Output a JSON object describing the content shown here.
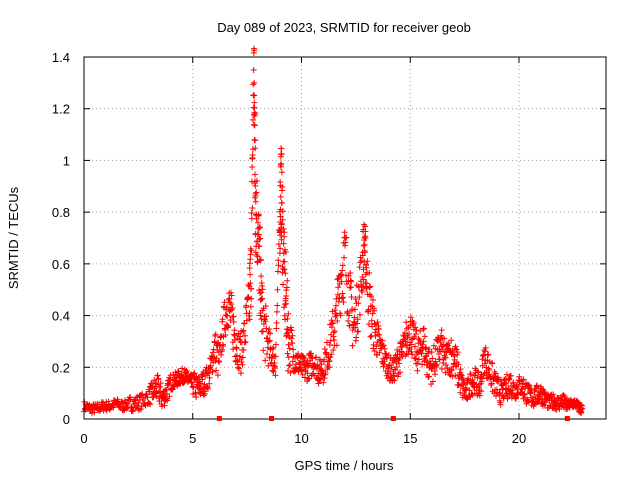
{
  "chart_data": {
    "type": "scatter",
    "title": "Day 089 of 2023, SRMTID for receiver geob",
    "xlabel": "GPS time / hours",
    "ylabel": "SRMTID / TECUs",
    "xlim": [
      0,
      24
    ],
    "ylim": [
      0,
      1.4
    ],
    "x_ticks": [
      0,
      5,
      10,
      15,
      20
    ],
    "x_tick_labels": [
      "0",
      "5",
      "10",
      "15",
      "20"
    ],
    "y_ticks": [
      0,
      0.2,
      0.4,
      0.6,
      0.8,
      1.0,
      1.2,
      1.4
    ],
    "y_tick_labels": [
      "0",
      "0.2",
      "0.4",
      "0.6",
      "0.8",
      "1",
      "1.2",
      "1.4"
    ],
    "grid": true,
    "marker": "+",
    "series_color": "#ff0000",
    "series": [
      {
        "name": "SRMTID",
        "x": [
          0.0,
          0.3,
          0.6,
          0.9,
          1.2,
          1.5,
          1.8,
          2.1,
          2.4,
          2.7,
          3.0,
          3.2,
          3.4,
          3.6,
          3.8,
          4.0,
          4.2,
          4.4,
          4.6,
          4.8,
          5.0,
          5.2,
          5.4,
          5.6,
          5.8,
          6.0,
          6.2,
          6.4,
          6.6,
          6.8,
          7.0,
          7.2,
          7.4,
          7.6,
          7.7,
          7.8,
          7.85,
          7.9,
          8.0,
          8.1,
          8.2,
          8.4,
          8.6,
          8.8,
          9.0,
          9.05,
          9.1,
          9.2,
          9.3,
          9.4,
          9.6,
          9.8,
          10.0,
          10.2,
          10.4,
          10.6,
          10.8,
          11.0,
          11.2,
          11.4,
          11.6,
          11.8,
          12.0,
          12.2,
          12.4,
          12.6,
          12.8,
          12.9,
          13.0,
          13.2,
          13.4,
          13.6,
          13.8,
          14.0,
          14.2,
          14.4,
          14.6,
          14.8,
          15.0,
          15.2,
          15.4,
          15.6,
          15.8,
          16.0,
          16.2,
          16.4,
          16.6,
          16.8,
          17.0,
          17.2,
          17.4,
          17.6,
          17.8,
          18.0,
          18.2,
          18.4,
          18.6,
          18.8,
          19.0,
          19.2,
          19.4,
          19.6,
          19.8,
          20.0,
          20.2,
          20.4,
          20.6,
          20.8,
          21.0,
          21.2,
          21.4,
          21.6,
          21.8,
          22.0,
          22.2,
          22.4,
          22.6,
          22.8
        ],
        "y": [
          0.05,
          0.04,
          0.04,
          0.05,
          0.05,
          0.06,
          0.05,
          0.06,
          0.06,
          0.07,
          0.09,
          0.11,
          0.12,
          0.08,
          0.1,
          0.14,
          0.15,
          0.16,
          0.17,
          0.15,
          0.14,
          0.12,
          0.13,
          0.15,
          0.18,
          0.28,
          0.22,
          0.35,
          0.45,
          0.38,
          0.3,
          0.25,
          0.33,
          0.45,
          0.62,
          1.35,
          1.1,
          0.85,
          0.72,
          0.55,
          0.4,
          0.3,
          0.25,
          0.22,
          0.75,
          0.93,
          0.82,
          0.55,
          0.45,
          0.3,
          0.25,
          0.22,
          0.2,
          0.19,
          0.21,
          0.22,
          0.18,
          0.2,
          0.25,
          0.32,
          0.38,
          0.55,
          0.62,
          0.48,
          0.35,
          0.45,
          0.6,
          0.68,
          0.55,
          0.4,
          0.33,
          0.28,
          0.24,
          0.2,
          0.18,
          0.22,
          0.25,
          0.3,
          0.35,
          0.28,
          0.25,
          0.3,
          0.22,
          0.2,
          0.24,
          0.28,
          0.22,
          0.25,
          0.24,
          0.18,
          0.12,
          0.1,
          0.14,
          0.15,
          0.12,
          0.24,
          0.2,
          0.15,
          0.12,
          0.1,
          0.12,
          0.14,
          0.11,
          0.13,
          0.12,
          0.1,
          0.08,
          0.09,
          0.1,
          0.08,
          0.06,
          0.07,
          0.06,
          0.07,
          0.05,
          0.06,
          0.06,
          0.04
        ],
        "spread": [
          0.02,
          0.02,
          0.02,
          0.02,
          0.02,
          0.02,
          0.02,
          0.03,
          0.03,
          0.03,
          0.04,
          0.05,
          0.05,
          0.04,
          0.04,
          0.03,
          0.03,
          0.03,
          0.03,
          0.03,
          0.05,
          0.05,
          0.05,
          0.05,
          0.06,
          0.08,
          0.06,
          0.08,
          0.1,
          0.1,
          0.08,
          0.08,
          0.1,
          0.15,
          0.2,
          0.25,
          0.25,
          0.2,
          0.18,
          0.15,
          0.12,
          0.08,
          0.06,
          0.06,
          0.15,
          0.18,
          0.2,
          0.18,
          0.15,
          0.1,
          0.06,
          0.05,
          0.05,
          0.05,
          0.05,
          0.05,
          0.05,
          0.06,
          0.08,
          0.1,
          0.12,
          0.15,
          0.15,
          0.12,
          0.1,
          0.12,
          0.12,
          0.1,
          0.12,
          0.1,
          0.08,
          0.06,
          0.05,
          0.05,
          0.05,
          0.06,
          0.06,
          0.08,
          0.08,
          0.08,
          0.08,
          0.08,
          0.07,
          0.07,
          0.07,
          0.08,
          0.07,
          0.08,
          0.08,
          0.06,
          0.05,
          0.05,
          0.05,
          0.05,
          0.05,
          0.06,
          0.06,
          0.05,
          0.05,
          0.04,
          0.05,
          0.05,
          0.04,
          0.04,
          0.05,
          0.04,
          0.04,
          0.04,
          0.04,
          0.03,
          0.03,
          0.03,
          0.03,
          0.03,
          0.02,
          0.02,
          0.02,
          0.02
        ]
      }
    ],
    "axis_markers_x": [
      6.2,
      8.6,
      14.2,
      22.2
    ]
  }
}
